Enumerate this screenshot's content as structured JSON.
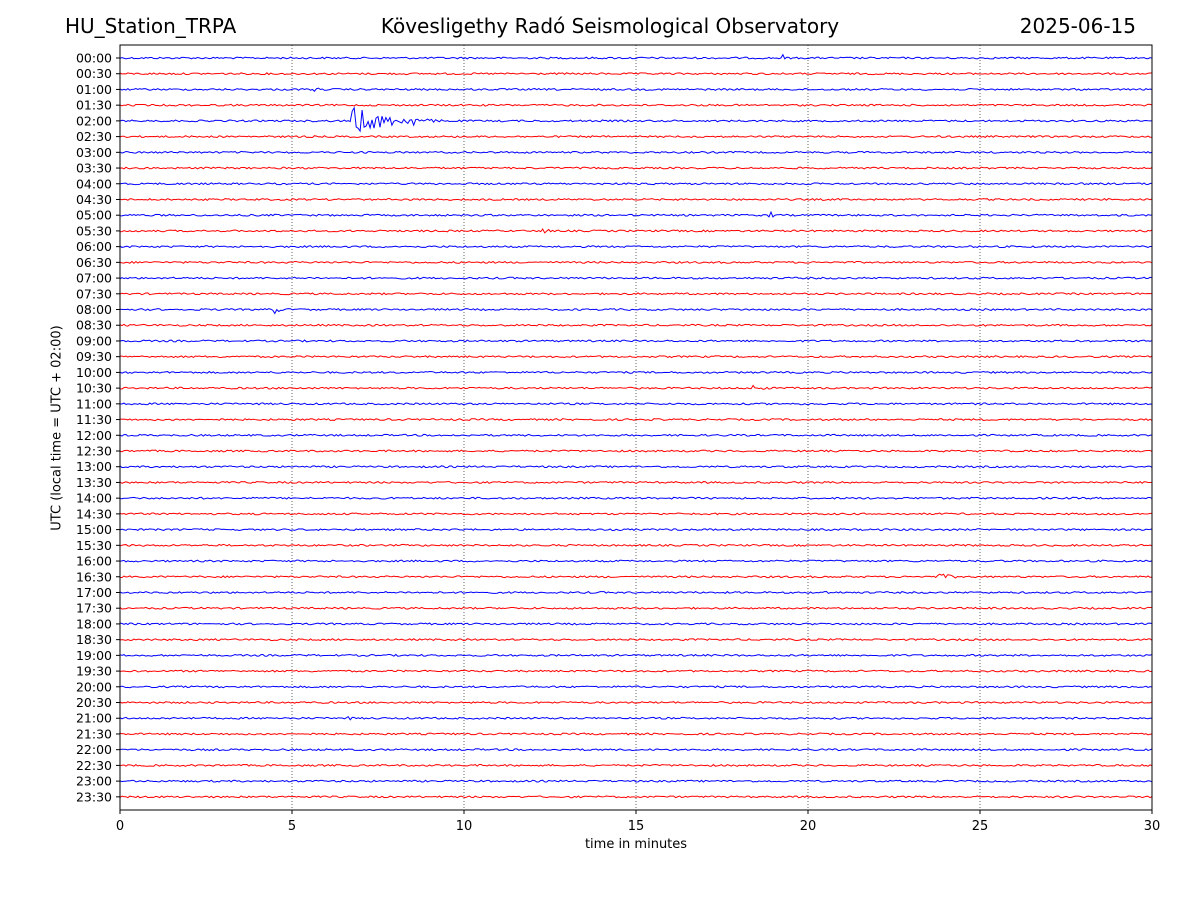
{
  "header": {
    "station": "HU_Station_TRPA",
    "title": "Kövesligethy Radó Seismological Observatory",
    "date": "2025-06-15"
  },
  "chart_data": {
    "type": "line",
    "subtype": "helicorder",
    "xlabel": "time in minutes",
    "ylabel": "UTC (local time = UTC + 02:00)",
    "xlim": [
      0,
      30
    ],
    "x_ticks": [
      0,
      5,
      10,
      15,
      20,
      25,
      30
    ],
    "x_grid": "dotted vertical lines at each 5 minutes",
    "row_labels": [
      "00:00",
      "00:30",
      "01:00",
      "01:30",
      "02:00",
      "02:30",
      "03:00",
      "03:30",
      "04:00",
      "04:30",
      "05:00",
      "05:30",
      "06:00",
      "06:30",
      "07:00",
      "07:30",
      "08:00",
      "08:30",
      "09:00",
      "09:30",
      "10:00",
      "10:30",
      "11:00",
      "11:30",
      "12:00",
      "12:30",
      "13:00",
      "13:30",
      "14:00",
      "14:30",
      "15:00",
      "15:30",
      "16:00",
      "16:30",
      "17:00",
      "17:30",
      "18:00",
      "18:30",
      "19:00",
      "19:30",
      "20:00",
      "20:30",
      "21:00",
      "21:30",
      "22:00",
      "22:30",
      "23:00",
      "23:30"
    ],
    "trace_colors": [
      "#0000ff",
      "#ff0000"
    ],
    "events": [
      {
        "row": "02:00",
        "start_min": 6.8,
        "duration_min": 3.2,
        "peak_amp": 1.0
      },
      {
        "row": "02:00",
        "start_min": 8.5,
        "duration_min": 0.6,
        "peak_amp": 0.45
      },
      {
        "row": "05:30",
        "start_min": 12.3,
        "duration_min": 0.3,
        "peak_amp": 0.55
      },
      {
        "row": "08:00",
        "start_min": 4.5,
        "duration_min": 0.3,
        "peak_amp": 0.5
      },
      {
        "row": "05:00",
        "start_min": 18.9,
        "duration_min": 0.3,
        "peak_amp": 0.3
      },
      {
        "row": "10:30",
        "start_min": 18.4,
        "duration_min": 1.2,
        "peak_amp": 0.25
      },
      {
        "row": "16:30",
        "start_min": 23.8,
        "duration_min": 1.5,
        "peak_amp": 0.25
      },
      {
        "row": "17:30",
        "start_min": 25.2,
        "duration_min": 0.3,
        "peak_amp": 0.25
      },
      {
        "row": "00:00",
        "start_min": 19.3,
        "duration_min": 0.2,
        "peak_amp": 0.25
      },
      {
        "row": "01:00",
        "start_min": 5.7,
        "duration_min": 0.3,
        "peak_amp": 0.2
      },
      {
        "row": "21:00",
        "start_min": 6.6,
        "duration_min": 0.5,
        "peak_amp": 0.2
      },
      {
        "row": "17:00",
        "start_min": 20.5,
        "duration_min": 0.6,
        "peak_amp": 0.15
      }
    ]
  }
}
